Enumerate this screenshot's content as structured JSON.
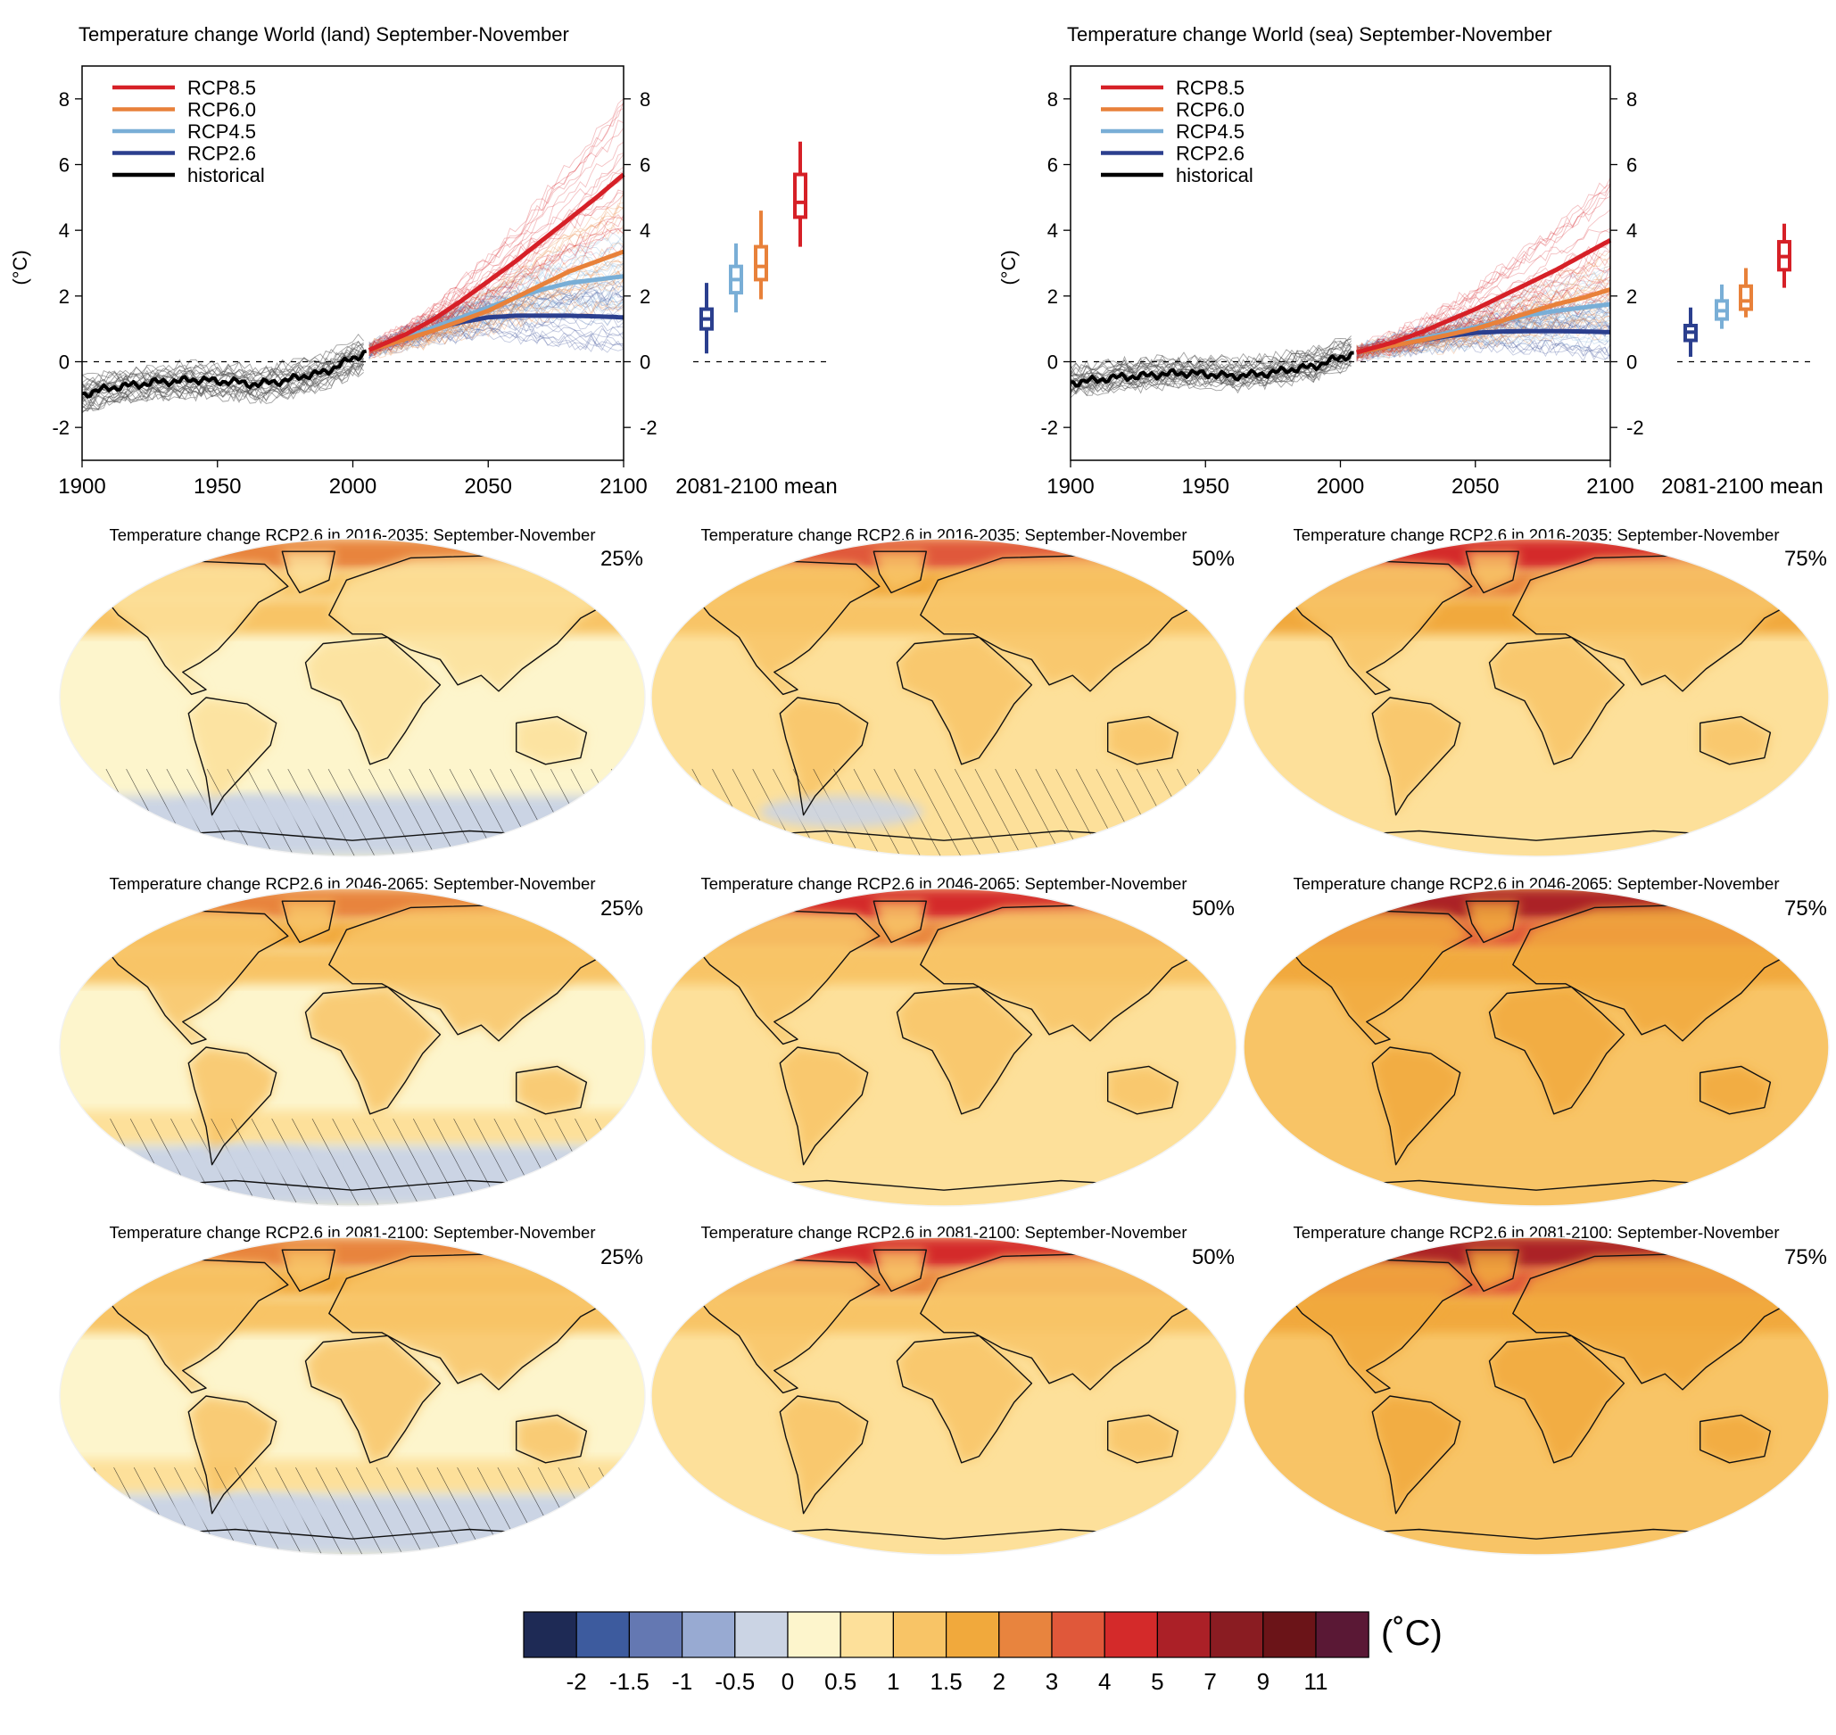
{
  "chart_data": [
    {
      "type": "line",
      "title": "Temperature change World (land) September-November",
      "ylabel": "(°C)",
      "xlim": [
        1900,
        2100
      ],
      "ylim": [
        -3,
        9
      ],
      "xticks": [
        1900,
        1950,
        2000,
        2050,
        2100
      ],
      "yticks": [
        -2,
        0,
        2,
        4,
        6,
        8
      ],
      "legend": {
        "position": "top-left",
        "entries": [
          "RCP8.5",
          "RCP6.0",
          "RCP4.5",
          "RCP2.6",
          "historical"
        ]
      },
      "series": [
        {
          "name": "historical",
          "color": "#000000",
          "x": [
            1900,
            1905,
            1910,
            1915,
            1920,
            1925,
            1930,
            1935,
            1940,
            1945,
            1950,
            1955,
            1960,
            1965,
            1970,
            1975,
            1980,
            1985,
            1990,
            1995,
            2000,
            2005
          ],
          "y": [
            -1.0,
            -0.9,
            -0.8,
            -0.75,
            -0.7,
            -0.65,
            -0.6,
            -0.6,
            -0.55,
            -0.55,
            -0.6,
            -0.6,
            -0.65,
            -0.7,
            -0.6,
            -0.6,
            -0.45,
            -0.4,
            -0.3,
            -0.1,
            0.1,
            0.3
          ]
        },
        {
          "name": "RCP2.6",
          "color": "#2b3f8e",
          "x": [
            2006,
            2020,
            2030,
            2040,
            2050,
            2060,
            2070,
            2080,
            2090,
            2100
          ],
          "y": [
            0.35,
            0.75,
            1.0,
            1.2,
            1.35,
            1.4,
            1.4,
            1.4,
            1.38,
            1.35
          ]
        },
        {
          "name": "RCP4.5",
          "color": "#79aed6",
          "x": [
            2006,
            2020,
            2030,
            2040,
            2050,
            2060,
            2070,
            2080,
            2090,
            2100
          ],
          "y": [
            0.35,
            0.75,
            1.05,
            1.35,
            1.65,
            1.95,
            2.2,
            2.4,
            2.5,
            2.6
          ]
        },
        {
          "name": "RCP6.0",
          "color": "#e8813a",
          "x": [
            2006,
            2020,
            2030,
            2040,
            2050,
            2060,
            2070,
            2080,
            2090,
            2100
          ],
          "y": [
            0.35,
            0.7,
            0.95,
            1.25,
            1.55,
            1.95,
            2.35,
            2.75,
            3.05,
            3.35
          ]
        },
        {
          "name": "RCP8.5",
          "color": "#d62027",
          "x": [
            2006,
            2020,
            2030,
            2040,
            2050,
            2060,
            2070,
            2080,
            2090,
            2100
          ],
          "y": [
            0.35,
            0.85,
            1.3,
            1.85,
            2.45,
            3.05,
            3.7,
            4.35,
            5.0,
            5.7
          ]
        }
      ],
      "mean_2081_2100": {
        "label": "2081-2100 mean",
        "boxes": [
          {
            "name": "RCP2.6",
            "color": "#2b3f8e",
            "min": 0.25,
            "q1": 1.0,
            "median": 1.3,
            "q3": 1.6,
            "max": 2.4
          },
          {
            "name": "RCP4.5",
            "color": "#79aed6",
            "min": 1.5,
            "q1": 2.1,
            "median": 2.5,
            "q3": 2.9,
            "max": 3.6
          },
          {
            "name": "RCP6.0",
            "color": "#e8813a",
            "min": 1.9,
            "q1": 2.5,
            "median": 2.9,
            "q3": 3.5,
            "max": 4.6
          },
          {
            "name": "RCP8.5",
            "color": "#d62027",
            "min": 3.5,
            "q1": 4.4,
            "median": 4.85,
            "q3": 5.7,
            "max": 6.7
          }
        ]
      }
    },
    {
      "type": "line",
      "title": "Temperature change World (sea) September-November",
      "ylabel": "(°C)",
      "xlim": [
        1900,
        2100
      ],
      "ylim": [
        -3,
        9
      ],
      "xticks": [
        1900,
        1950,
        2000,
        2050,
        2100
      ],
      "yticks": [
        -2,
        0,
        2,
        4,
        6,
        8
      ],
      "legend": {
        "position": "top-left",
        "entries": [
          "RCP8.5",
          "RCP6.0",
          "RCP4.5",
          "RCP2.6",
          "historical"
        ]
      },
      "series": [
        {
          "name": "historical",
          "color": "#000000",
          "x": [
            1900,
            1905,
            1910,
            1915,
            1920,
            1925,
            1930,
            1935,
            1940,
            1945,
            1950,
            1955,
            1960,
            1965,
            1970,
            1975,
            1980,
            1985,
            1990,
            1995,
            2000,
            2005
          ],
          "y": [
            -0.65,
            -0.6,
            -0.55,
            -0.5,
            -0.45,
            -0.45,
            -0.4,
            -0.38,
            -0.35,
            -0.35,
            -0.38,
            -0.4,
            -0.45,
            -0.4,
            -0.38,
            -0.33,
            -0.25,
            -0.2,
            -0.15,
            0.0,
            0.12,
            0.25
          ]
        },
        {
          "name": "RCP2.6",
          "color": "#2b3f8e",
          "x": [
            2006,
            2020,
            2030,
            2040,
            2050,
            2060,
            2070,
            2080,
            2090,
            2100
          ],
          "y": [
            0.28,
            0.5,
            0.65,
            0.78,
            0.88,
            0.92,
            0.93,
            0.93,
            0.92,
            0.9
          ]
        },
        {
          "name": "RCP4.5",
          "color": "#79aed6",
          "x": [
            2006,
            2020,
            2030,
            2040,
            2050,
            2060,
            2070,
            2080,
            2090,
            2100
          ],
          "y": [
            0.28,
            0.52,
            0.7,
            0.88,
            1.05,
            1.25,
            1.42,
            1.55,
            1.65,
            1.75
          ]
        },
        {
          "name": "RCP6.0",
          "color": "#e8813a",
          "x": [
            2006,
            2020,
            2030,
            2040,
            2050,
            2060,
            2070,
            2080,
            2090,
            2100
          ],
          "y": [
            0.28,
            0.5,
            0.65,
            0.82,
            1.0,
            1.25,
            1.5,
            1.75,
            1.95,
            2.2
          ]
        },
        {
          "name": "RCP8.5",
          "color": "#d62027",
          "x": [
            2006,
            2020,
            2030,
            2040,
            2050,
            2060,
            2070,
            2080,
            2090,
            2100
          ],
          "y": [
            0.28,
            0.6,
            0.9,
            1.25,
            1.6,
            2.0,
            2.4,
            2.8,
            3.25,
            3.7
          ]
        }
      ],
      "mean_2081_2100": {
        "label": "2081-2100 mean",
        "boxes": [
          {
            "name": "RCP2.6",
            "color": "#2b3f8e",
            "min": 0.15,
            "q1": 0.65,
            "median": 0.9,
            "q3": 1.1,
            "max": 1.65
          },
          {
            "name": "RCP4.5",
            "color": "#79aed6",
            "min": 1.0,
            "q1": 1.3,
            "median": 1.55,
            "q3": 1.85,
            "max": 2.35
          },
          {
            "name": "RCP6.0",
            "color": "#e8813a",
            "min": 1.35,
            "q1": 1.6,
            "median": 1.85,
            "q3": 2.3,
            "max": 2.85
          },
          {
            "name": "RCP8.5",
            "color": "#d62027",
            "min": 2.25,
            "q1": 2.8,
            "median": 3.2,
            "q3": 3.65,
            "max": 4.2
          }
        ]
      }
    },
    {
      "type": "heatmap",
      "maps": [
        {
          "title": "Temperature change RCP2.6 in 2016-2035: September-November",
          "percentile": "25%",
          "level": 0
        },
        {
          "title": "Temperature change RCP2.6 in 2016-2035: September-November",
          "percentile": "50%",
          "level": 1
        },
        {
          "title": "Temperature change RCP2.6 in 2016-2035: September-November",
          "percentile": "75%",
          "level": 2
        },
        {
          "title": "Temperature change RCP2.6 in 2046-2065: September-November",
          "percentile": "25%",
          "level": 0.6
        },
        {
          "title": "Temperature change RCP2.6 in 2046-2065: September-November",
          "percentile": "50%",
          "level": 1.6
        },
        {
          "title": "Temperature change RCP2.6 in 2046-2065: September-November",
          "percentile": "75%",
          "level": 2.6
        },
        {
          "title": "Temperature change RCP2.6 in 2081-2100: September-November",
          "percentile": "25%",
          "level": 0.6
        },
        {
          "title": "Temperature change RCP2.6 in 2081-2100: September-November",
          "percentile": "50%",
          "level": 1.6
        },
        {
          "title": "Temperature change RCP2.6 in 2081-2100: September-November",
          "percentile": "75%",
          "level": 2.7
        }
      ],
      "colorbar": {
        "unit": "(˚C)",
        "colors": [
          "#1e2a55",
          "#3d5b9e",
          "#6478b2",
          "#98aad2",
          "#cbd4e4",
          "#fdf5cc",
          "#fde09a",
          "#f8c466",
          "#f1a93c",
          "#e8843e",
          "#e0583a",
          "#d42a2a",
          "#ab2027",
          "#8a1c22",
          "#6b1418",
          "#5a1835"
        ],
        "labels": [
          "-2",
          "-1.5",
          "-1",
          "-0.5",
          "0",
          "0.5",
          "1",
          "1.5",
          "2",
          "3",
          "4",
          "5",
          "7",
          "9",
          "11"
        ]
      }
    }
  ]
}
